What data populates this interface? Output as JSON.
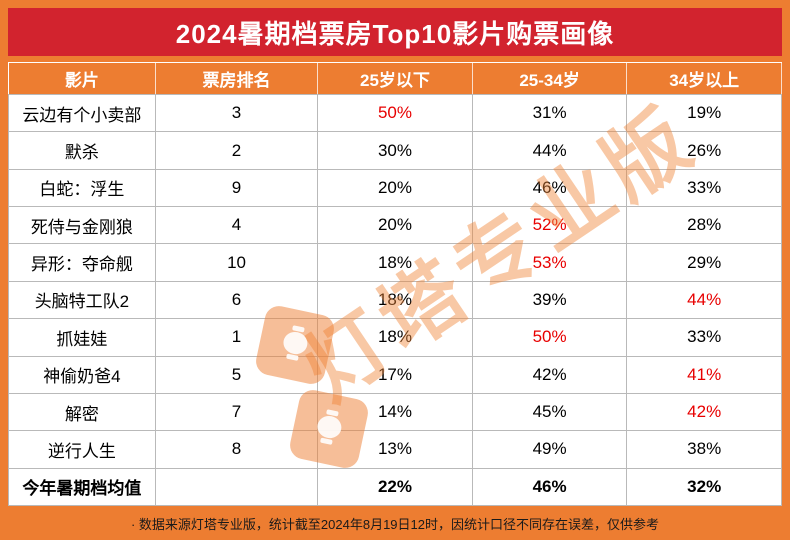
{
  "title": "2024暑期档票房Top10影片购票画像",
  "watermark": "灯塔专业版",
  "colors": {
    "orange": "#ED7D31",
    "title_red": "#D2232E",
    "highlight_red": "#E80000",
    "grid": "#b9b9b9"
  },
  "footer": "·  数据来源灯塔专业版，统计截至2024年8月19日12时，因统计口径不同存在误差，仅供参考",
  "chart_data": {
    "type": "table",
    "title": "2024暑期档票房Top10影片购票画像",
    "columns": [
      "影片",
      "票房排名",
      "25岁以下",
      "25-34岁",
      "34岁以上"
    ],
    "rows": [
      {
        "影片": "云边有个小卖部",
        "票房排名": 3,
        "25岁以下": "50%",
        "25-34岁": "31%",
        "34岁以上": "19%"
      },
      {
        "影片": "默杀",
        "票房排名": 2,
        "25岁以下": "30%",
        "25-34岁": "44%",
        "34岁以上": "26%"
      },
      {
        "影片": "白蛇：浮生",
        "票房排名": 9,
        "25岁以下": "20%",
        "25-34岁": "46%",
        "34岁以上": "33%"
      },
      {
        "影片": "死侍与金刚狼",
        "票房排名": 4,
        "25岁以下": "20%",
        "25-34岁": "52%",
        "34岁以上": "28%"
      },
      {
        "影片": "异形：夺命舰",
        "票房排名": 10,
        "25岁以下": "18%",
        "25-34岁": "53%",
        "34岁以上": "29%"
      },
      {
        "影片": "头脑特工队2",
        "票房排名": 6,
        "25岁以下": "18%",
        "25-34岁": "39%",
        "34岁以上": "44%"
      },
      {
        "影片": "抓娃娃",
        "票房排名": 1,
        "25岁以下": "18%",
        "25-34岁": "50%",
        "34岁以上": "33%"
      },
      {
        "影片": "神偷奶爸4",
        "票房排名": 5,
        "25岁以下": "17%",
        "25-34岁": "42%",
        "34岁以上": "41%"
      },
      {
        "影片": "解密",
        "票房排名": 7,
        "25岁以下": "14%",
        "25-34岁": "45%",
        "34岁以上": "42%"
      },
      {
        "影片": "逆行人生",
        "票房排名": 8,
        "25岁以下": "13%",
        "25-34岁": "49%",
        "34岁以上": "38%"
      },
      {
        "影片": "今年暑期档均值",
        "票房排名": "",
        "25岁以下": "22%",
        "25-34岁": "46%",
        "34岁以上": "32%"
      }
    ]
  },
  "table": {
    "headers": [
      "影片",
      "票房排名",
      "25岁以下",
      "25-34岁",
      "34岁以上"
    ],
    "rows": [
      {
        "film": "云边有个小卖部",
        "rank": "3",
        "cells": [
          {
            "v": "50%",
            "red": true
          },
          {
            "v": "31%",
            "red": false
          },
          {
            "v": "19%",
            "red": false
          }
        ]
      },
      {
        "film": "默杀",
        "rank": "2",
        "cells": [
          {
            "v": "30%",
            "red": false
          },
          {
            "v": "44%",
            "red": false
          },
          {
            "v": "26%",
            "red": false
          }
        ]
      },
      {
        "film": "白蛇：浮生",
        "rank": "9",
        "cells": [
          {
            "v": "20%",
            "red": false
          },
          {
            "v": "46%",
            "red": false
          },
          {
            "v": "33%",
            "red": false
          }
        ]
      },
      {
        "film": "死侍与金刚狼",
        "rank": "4",
        "cells": [
          {
            "v": "20%",
            "red": false
          },
          {
            "v": "52%",
            "red": true
          },
          {
            "v": "28%",
            "red": false
          }
        ]
      },
      {
        "film": "异形：夺命舰",
        "rank": "10",
        "cells": [
          {
            "v": "18%",
            "red": false
          },
          {
            "v": "53%",
            "red": true
          },
          {
            "v": "29%",
            "red": false
          }
        ]
      },
      {
        "film": "头脑特工队2",
        "rank": "6",
        "cells": [
          {
            "v": "18%",
            "red": false
          },
          {
            "v": "39%",
            "red": false
          },
          {
            "v": "44%",
            "red": true
          }
        ]
      },
      {
        "film": "抓娃娃",
        "rank": "1",
        "cells": [
          {
            "v": "18%",
            "red": false
          },
          {
            "v": "50%",
            "red": true
          },
          {
            "v": "33%",
            "red": false
          }
        ]
      },
      {
        "film": "神偷奶爸4",
        "rank": "5",
        "cells": [
          {
            "v": "17%",
            "red": false
          },
          {
            "v": "42%",
            "red": false
          },
          {
            "v": "41%",
            "red": true
          }
        ]
      },
      {
        "film": "解密",
        "rank": "7",
        "cells": [
          {
            "v": "14%",
            "red": false
          },
          {
            "v": "45%",
            "red": false
          },
          {
            "v": "42%",
            "red": true
          }
        ]
      },
      {
        "film": "逆行人生",
        "rank": "8",
        "cells": [
          {
            "v": "13%",
            "red": false
          },
          {
            "v": "49%",
            "red": false
          },
          {
            "v": "38%",
            "red": false
          }
        ]
      }
    ],
    "summary": {
      "label": "今年暑期档均值",
      "rank": "",
      "cells": [
        {
          "v": "22%"
        },
        {
          "v": "46%"
        },
        {
          "v": "32%"
        }
      ]
    }
  }
}
